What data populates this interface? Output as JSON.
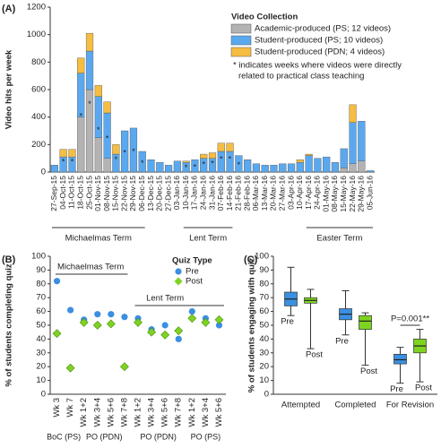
{
  "chart_data": [
    {
      "type": "stacked_bar",
      "panel_label": "(A)",
      "y_label": "Video hits per week",
      "categories": [
        "27-Sep-15",
        "04-Oct-15",
        "11-Oct-15",
        "18-Oct-15",
        "25-Oct-15",
        "01-Nov-15",
        "08-Nov-15",
        "15-Nov-15",
        "22-Nov-15",
        "29-Nov-15",
        "06-Dec-15",
        "13-Dec-15",
        "20-Dec-15",
        "27-Dec-15",
        "03-Jan-16",
        "10-Jan-16",
        "17-Jan-16",
        "24-Jan-16",
        "31-Jan-16",
        "07-Feb-16",
        "14-Feb-16",
        "21-Feb-16",
        "28-Feb-16",
        "06-Mar-16",
        "13-Mar-16",
        "20-Mar-16",
        "27-Mar-16",
        "03-Apr-16",
        "10-Apr-16",
        "17-Apr-16",
        "24-Apr-16",
        "01-May-16",
        "08-May-16",
        "15-May-16",
        "22-May-16",
        "29-May-16",
        "05-Jun-16"
      ],
      "series": [
        {
          "name": "Academic-produced (PS; 12 videos)",
          "color": "#b3b3b3",
          "values": [
            0,
            0,
            0,
            400,
            600,
            250,
            100,
            0,
            0,
            0,
            0,
            0,
            0,
            0,
            0,
            0,
            0,
            0,
            0,
            0,
            0,
            0,
            0,
            0,
            0,
            0,
            0,
            0,
            0,
            0,
            0,
            0,
            0,
            30,
            60,
            80,
            0
          ]
        },
        {
          "name": "Student-produced (PS; 10 videos)",
          "color": "#5aa9f0",
          "values": [
            50,
            110,
            110,
            320,
            280,
            300,
            330,
            130,
            300,
            320,
            150,
            90,
            70,
            50,
            80,
            70,
            90,
            100,
            100,
            150,
            150,
            120,
            90,
            60,
            50,
            50,
            60,
            60,
            70,
            120,
            100,
            110,
            70,
            140,
            300,
            290,
            10
          ]
        },
        {
          "name": "Student-produced (PDN; 4 videos)",
          "color": "#f5bd42",
          "values": [
            0,
            55,
            55,
            110,
            130,
            80,
            80,
            70,
            0,
            0,
            0,
            0,
            0,
            0,
            0,
            10,
            0,
            30,
            40,
            60,
            60,
            0,
            0,
            0,
            0,
            0,
            0,
            0,
            20,
            10,
            0,
            0,
            0,
            0,
            130,
            0,
            0
          ]
        }
      ],
      "directly_related": [
        false,
        true,
        true,
        true,
        true,
        true,
        true,
        true,
        true,
        true,
        true,
        false,
        false,
        false,
        false,
        true,
        true,
        true,
        true,
        true,
        true,
        true,
        false,
        false,
        false,
        false,
        false,
        false,
        false,
        false,
        false,
        false,
        false,
        false,
        false,
        false,
        false
      ],
      "star": "*",
      "ylim": [
        0,
        1200
      ],
      "yticks": [
        0,
        200,
        400,
        600,
        800,
        1000,
        1200
      ],
      "legend_title": "Video Collection",
      "note": [
        "* indicates weeks where videos were directly",
        "related to practical class teaching"
      ],
      "terms": [
        {
          "label": "Michaelmas Term",
          "from": "27-Sep-15",
          "to": "06-Dec-15"
        },
        {
          "label": "Lent Term",
          "from": "10-Jan-16",
          "to": "14-Feb-16"
        },
        {
          "label": "Easter Term",
          "from": "17-Apr-16",
          "to": "05-Jun-16"
        }
      ]
    },
    {
      "type": "dot",
      "panel_label": "(B)",
      "y_label": "% of students completing quiz",
      "categories": [
        "Wk 3",
        "Wk 7",
        "Wk 1+2",
        "Wk 3+4",
        "Wk 5+6",
        "Wk 7+8",
        "Wk 1+2",
        "Wk 3+4",
        "Wk 5+6",
        "Wk 7+8",
        "Wk 1+2",
        "Wk 3+4",
        "Wk 5+6"
      ],
      "groups": [
        {
          "label": "BoC (PS)",
          "size": 2
        },
        {
          "label": "PO (PDN)",
          "size": 4
        },
        {
          "label": "PO (PDN)",
          "size": 4
        },
        {
          "label": "PO (PS)",
          "size": 3
        }
      ],
      "terms": [
        "Michaelmas Term",
        "Lent Term"
      ],
      "legend_title": "Quiz Type",
      "series": [
        {
          "name": "Pre",
          "color": "#3b8fe0",
          "marker": "circle",
          "values": [
            82,
            61,
            54,
            58,
            58,
            56,
            55,
            47,
            50,
            40,
            60,
            55,
            50
          ]
        },
        {
          "name": "Post",
          "color": "#7ed321",
          "marker": "diamond",
          "values": [
            44,
            19,
            52,
            50,
            51,
            20,
            52,
            45,
            43,
            46,
            55,
            52,
            54
          ]
        }
      ],
      "ylim": [
        0,
        100
      ],
      "yticks": [
        0,
        10,
        20,
        30,
        40,
        50,
        60,
        70,
        80,
        90,
        100
      ]
    },
    {
      "type": "box",
      "panel_label": "(C)",
      "y_label": "% of students engaging with quiz",
      "categories": [
        "Attempted",
        "Completed",
        "For Revision"
      ],
      "series": [
        {
          "name": "Pre",
          "color": "#3b8fe0",
          "values": [
            [
              57,
              64,
              69,
              74,
              92
            ],
            [
              43,
              54,
              58,
              62,
              75
            ],
            [
              8,
              22,
              25,
              29,
              34
            ]
          ]
        },
        {
          "name": "Post",
          "color": "#7ed321",
          "values": [
            [
              33,
              66,
              68,
              70,
              76
            ],
            [
              21,
              47,
              53,
              57,
              59
            ],
            [
              9,
              30,
              35,
              40,
              47
            ]
          ]
        }
      ],
      "annotation": "P=0.001**",
      "ylim": [
        0,
        100
      ],
      "yticks": [
        0,
        10,
        20,
        30,
        40,
        50,
        60,
        70,
        80,
        90,
        100
      ]
    }
  ]
}
